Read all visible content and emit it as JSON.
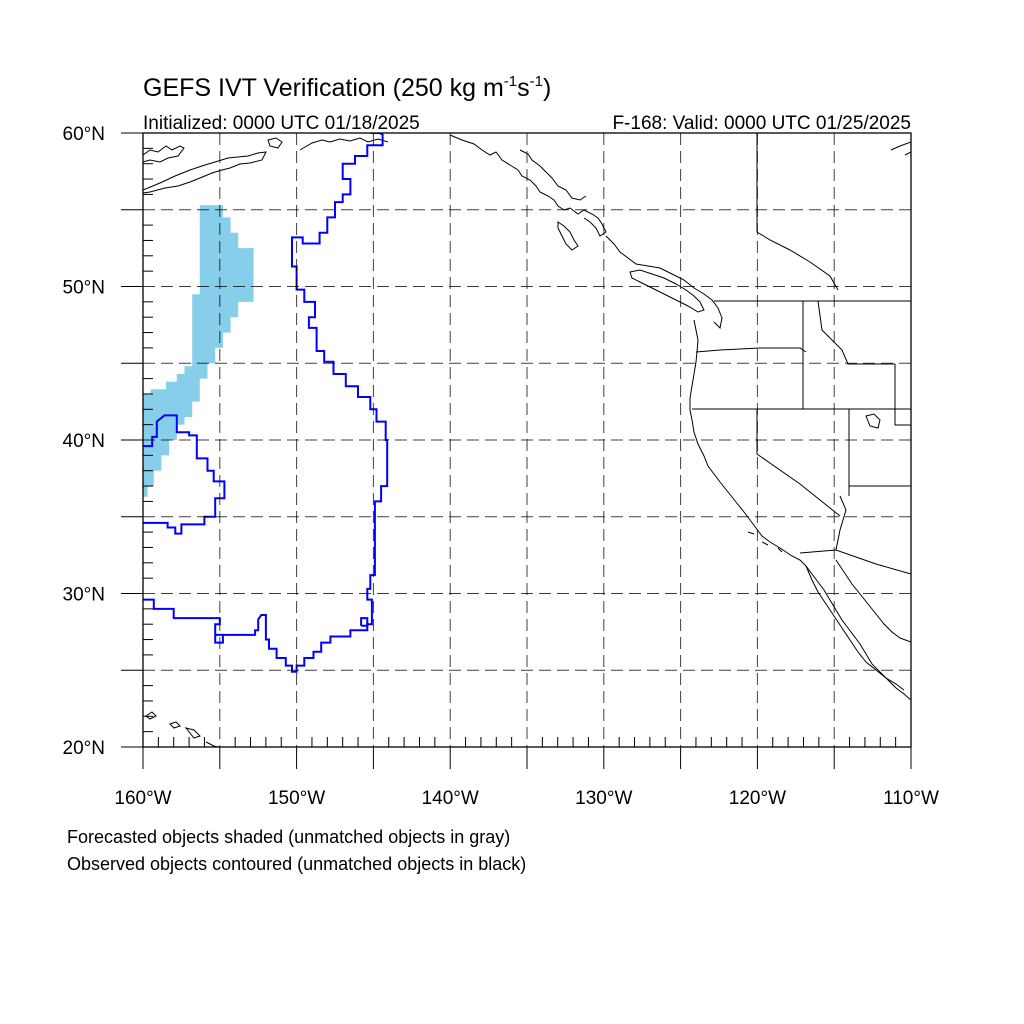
{
  "map": {
    "title_main": "GEFS IVT Verification (250 kg m",
    "title_exp1": "-1",
    "title_mid": "s",
    "title_exp2": "-1",
    "title_end": ")",
    "initialized": "Initialized: 0000 UTC 01/18/2025",
    "valid": "F-168: Valid: 0000 UTC 01/25/2025",
    "lon_range": [
      -160,
      -110
    ],
    "lat_range": [
      20,
      60
    ],
    "grid_lon_step": 5,
    "grid_lat_step": 5,
    "lat_ticks": [
      {
        "value": 60,
        "label": "60°N"
      },
      {
        "value": 50,
        "label": "50°N"
      },
      {
        "value": 40,
        "label": "40°N"
      },
      {
        "value": 30,
        "label": "30°N"
      },
      {
        "value": 20,
        "label": "20°N"
      }
    ],
    "lon_ticks": [
      {
        "value": -160,
        "label": "160°W"
      },
      {
        "value": -150,
        "label": "150°W"
      },
      {
        "value": -140,
        "label": "140°W"
      },
      {
        "value": -130,
        "label": "130°W"
      },
      {
        "value": -120,
        "label": "120°W"
      },
      {
        "value": -110,
        "label": "110°W"
      }
    ],
    "colors": {
      "forecast_fill": "#87ceeb",
      "observed_contour": "#0000ff",
      "coastline": "#000000",
      "grid": "#000000"
    },
    "forecast_object": [
      [
        -156.3,
        55.3
      ],
      [
        -154.8,
        55.3
      ],
      [
        -154.8,
        54.5
      ],
      [
        -154.3,
        54.5
      ],
      [
        -154.3,
        53.5
      ],
      [
        -153.8,
        53.5
      ],
      [
        -153.8,
        52.5
      ],
      [
        -153.3,
        52.5
      ],
      [
        -152.8,
        52.5
      ],
      [
        -152.8,
        49.0
      ],
      [
        -153.3,
        49.0
      ],
      [
        -153.8,
        49.0
      ],
      [
        -153.8,
        48.0
      ],
      [
        -154.3,
        48.0
      ],
      [
        -154.3,
        47.0
      ],
      [
        -154.8,
        47.0
      ],
      [
        -154.8,
        46.0
      ],
      [
        -155.3,
        46.0
      ],
      [
        -155.3,
        45.0
      ],
      [
        -155.8,
        45.0
      ],
      [
        -155.8,
        44.0
      ],
      [
        -156.3,
        44.0
      ],
      [
        -156.3,
        42.5
      ],
      [
        -156.8,
        42.5
      ],
      [
        -156.8,
        41.5
      ],
      [
        -157.3,
        41.5
      ],
      [
        -157.3,
        41.0
      ],
      [
        -157.8,
        41.0
      ],
      [
        -157.8,
        40.0
      ],
      [
        -158.3,
        40.0
      ],
      [
        -158.3,
        39.0
      ],
      [
        -158.8,
        39.0
      ],
      [
        -158.8,
        38.0
      ],
      [
        -159.3,
        38.0
      ],
      [
        -159.3,
        37.0
      ],
      [
        -159.7,
        37.0
      ],
      [
        -159.7,
        36.3
      ],
      [
        -160.0,
        36.3
      ],
      [
        -160.0,
        43.0
      ],
      [
        -159.5,
        43.0
      ],
      [
        -159.5,
        43.3
      ],
      [
        -158.5,
        43.3
      ],
      [
        -158.5,
        43.8
      ],
      [
        -157.8,
        43.8
      ],
      [
        -157.8,
        44.3
      ],
      [
        -157.3,
        44.3
      ],
      [
        -157.3,
        44.8
      ],
      [
        -156.8,
        44.8
      ],
      [
        -156.8,
        49.5
      ],
      [
        -156.3,
        49.5
      ],
      [
        -156.3,
        55.3
      ]
    ],
    "observed_objects": [
      [
        [
          -145.2,
          60.0
        ],
        [
          -144.6,
          60.0
        ],
        [
          -144.4,
          59.9
        ],
        [
          -144.4,
          59.2
        ],
        [
          -145.4,
          59.2
        ],
        [
          -145.4,
          58.5
        ],
        [
          -146.2,
          58.5
        ],
        [
          -146.2,
          58.0
        ],
        [
          -147.0,
          58.0
        ],
        [
          -147.0,
          57.0
        ],
        [
          -146.5,
          57.0
        ],
        [
          -146.5,
          56.0
        ],
        [
          -147.0,
          56.0
        ],
        [
          -147.0,
          55.5
        ],
        [
          -147.5,
          55.5
        ],
        [
          -147.5,
          54.5
        ],
        [
          -148.0,
          54.5
        ],
        [
          -148.0,
          53.5
        ],
        [
          -148.5,
          53.5
        ],
        [
          -148.5,
          52.8
        ],
        [
          -149.6,
          52.8
        ],
        [
          -149.6,
          53.2
        ],
        [
          -150.3,
          53.2
        ],
        [
          -150.3,
          51.3
        ],
        [
          -150.0,
          51.3
        ],
        [
          -150.0,
          49.8
        ],
        [
          -149.5,
          49.8
        ],
        [
          -149.5,
          49.0
        ],
        [
          -148.8,
          49.0
        ],
        [
          -148.8,
          48.0
        ],
        [
          -149.2,
          48.0
        ],
        [
          -149.2,
          47.3
        ],
        [
          -148.7,
          47.3
        ],
        [
          -148.7,
          45.8
        ],
        [
          -148.2,
          45.8
        ],
        [
          -148.2,
          45.1
        ],
        [
          -147.6,
          45.1
        ],
        [
          -147.6,
          44.3
        ],
        [
          -146.8,
          44.3
        ],
        [
          -146.8,
          43.5
        ],
        [
          -146.0,
          43.5
        ],
        [
          -146.0,
          42.8
        ],
        [
          -145.2,
          42.8
        ],
        [
          -145.2,
          42.0
        ],
        [
          -144.8,
          42.0
        ],
        [
          -144.8,
          41.2
        ],
        [
          -144.2,
          41.2
        ],
        [
          -144.2,
          40.0
        ],
        [
          -144.1,
          40.0
        ],
        [
          -144.1,
          37.0
        ],
        [
          -144.5,
          37.0
        ],
        [
          -144.5,
          36.0
        ],
        [
          -144.9,
          36.0
        ],
        [
          -144.9,
          31.2
        ],
        [
          -145.2,
          31.2
        ],
        [
          -145.2,
          30.3
        ],
        [
          -145.4,
          30.3
        ],
        [
          -145.4,
          29.6
        ],
        [
          -145.1,
          29.6
        ],
        [
          -145.1,
          28.0
        ],
        [
          -145.4,
          28.0
        ],
        [
          -145.4,
          27.6
        ],
        [
          -146.5,
          27.6
        ],
        [
          -146.5,
          27.2
        ],
        [
          -147.8,
          27.2
        ],
        [
          -147.8,
          26.8
        ],
        [
          -148.4,
          26.8
        ],
        [
          -148.4,
          26.2
        ],
        [
          -148.9,
          26.2
        ],
        [
          -148.9,
          25.8
        ],
        [
          -149.5,
          25.8
        ],
        [
          -149.5,
          25.3
        ],
        [
          -150.0,
          25.3
        ],
        [
          -150.0,
          24.9
        ],
        [
          -150.3,
          24.9
        ],
        [
          -150.3,
          25.3
        ],
        [
          -150.7,
          25.3
        ],
        [
          -150.7,
          25.8
        ],
        [
          -151.3,
          25.8
        ],
        [
          -151.3,
          26.4
        ],
        [
          -151.8,
          26.4
        ],
        [
          -151.8,
          27.0
        ],
        [
          -152.0,
          27.0
        ],
        [
          -152.0,
          28.6
        ],
        [
          -152.3,
          28.6
        ],
        [
          -152.5,
          28.3
        ],
        [
          -152.5,
          27.6
        ],
        [
          -152.7,
          27.6
        ],
        [
          -152.7,
          27.3
        ],
        [
          -154.8,
          27.3
        ],
        [
          -154.8,
          26.8
        ],
        [
          -155.3,
          26.8
        ],
        [
          -155.3,
          27.3
        ],
        [
          -154.8,
          27.3
        ],
        [
          -155.3,
          27.3
        ],
        [
          -155.3,
          28.0
        ],
        [
          -155.0,
          28.0
        ],
        [
          -155.0,
          28.4
        ],
        [
          -158.0,
          28.4
        ],
        [
          -158.0,
          29.0
        ],
        [
          -159.3,
          29.0
        ],
        [
          -159.3,
          29.6
        ],
        [
          -160.0,
          29.6
        ]
      ],
      [
        [
          -160.0,
          39.6
        ],
        [
          -159.4,
          39.6
        ],
        [
          -159.4,
          40.2
        ],
        [
          -159.1,
          40.2
        ],
        [
          -159.1,
          41.2
        ],
        [
          -158.6,
          41.6
        ],
        [
          -157.8,
          41.6
        ],
        [
          -157.8,
          40.5
        ],
        [
          -157.0,
          40.5
        ],
        [
          -157.0,
          40.3
        ],
        [
          -156.5,
          40.3
        ],
        [
          -156.5,
          38.8
        ],
        [
          -155.8,
          38.8
        ],
        [
          -155.8,
          38.0
        ],
        [
          -155.4,
          38.0
        ],
        [
          -155.4,
          37.3
        ],
        [
          -154.7,
          37.3
        ],
        [
          -154.7,
          36.2
        ],
        [
          -155.3,
          36.2
        ],
        [
          -155.3,
          35.0
        ],
        [
          -156.0,
          35.0
        ],
        [
          -156.0,
          34.5
        ],
        [
          -157.5,
          34.5
        ],
        [
          -157.5,
          33.9
        ],
        [
          -157.9,
          33.9
        ],
        [
          -157.9,
          34.3
        ],
        [
          -158.4,
          34.3
        ],
        [
          -158.4,
          34.6
        ],
        [
          -160.0,
          34.6
        ]
      ],
      [
        [
          -145.8,
          27.9
        ],
        [
          -145.4,
          27.9
        ],
        [
          -145.4,
          28.4
        ],
        [
          -145.8,
          28.4
        ],
        [
          -145.8,
          27.9
        ]
      ]
    ],
    "notes": [
      "Forecasted objects shaded (unmatched objects in gray)",
      "Observed objects contoured (unmatched objects in black)"
    ]
  }
}
